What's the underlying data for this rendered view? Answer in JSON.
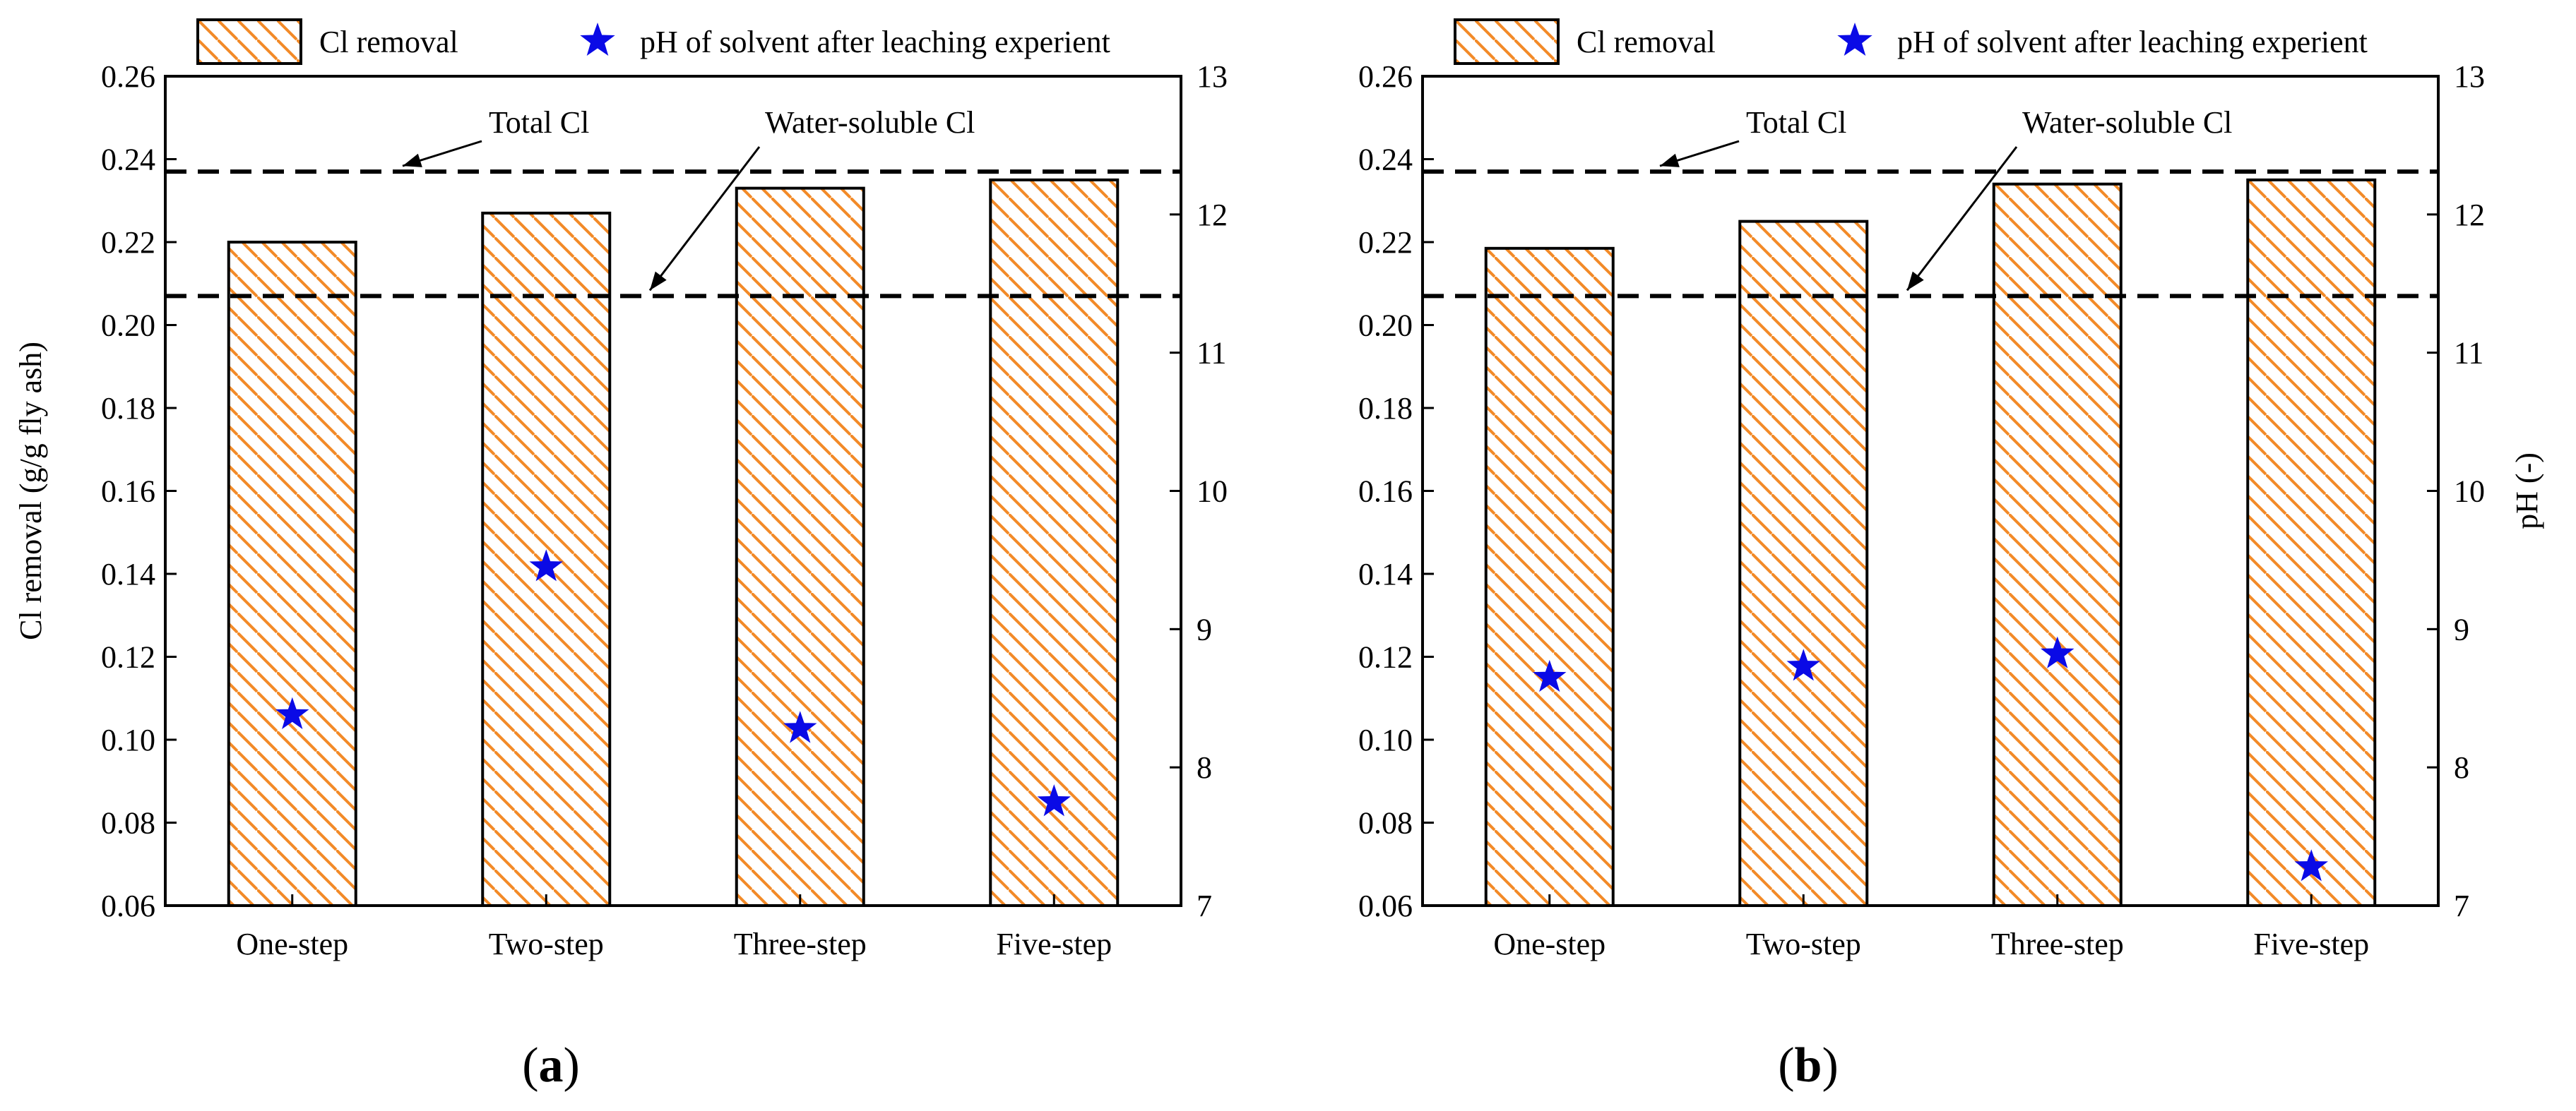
{
  "legend": {
    "bar_label": "Cl removal",
    "marker_label": "pH of solvent after leaching experient"
  },
  "colors": {
    "bar_hatch": "#F28A28",
    "bar_edge": "#000000",
    "marker": "#0A0AE6",
    "reference_line": "#000000"
  },
  "chart_data": [
    {
      "type": "bar",
      "panel_label": "a",
      "categories": [
        "One-step",
        "Two-step",
        "Three-step",
        "Five-step"
      ],
      "series": [
        {
          "name": "Cl removal",
          "axis": "left",
          "values": [
            0.22,
            0.227,
            0.233,
            0.235
          ]
        },
        {
          "name": "pH of solvent after leaching experient",
          "axis": "right",
          "kind": "scatter",
          "values": [
            8.38,
            9.45,
            8.28,
            7.75
          ]
        }
      ],
      "reference_lines": [
        {
          "label": "Total Cl",
          "value": 0.237
        },
        {
          "label": "Water-soluble Cl",
          "value": 0.207
        }
      ],
      "ylabel": "Cl removal (g/g fly ash)",
      "y2label": "",
      "ylim": [
        0.06,
        0.26
      ],
      "y2lim": [
        7,
        13
      ],
      "yticks": [
        "0.06",
        "0.08",
        "0.10",
        "0.12",
        "0.14",
        "0.16",
        "0.18",
        "0.20",
        "0.22",
        "0.24",
        "0.26"
      ],
      "y2ticks": [
        "7",
        "8",
        "9",
        "10",
        "11",
        "12",
        "13"
      ]
    },
    {
      "type": "bar",
      "panel_label": "b",
      "categories": [
        "One-step",
        "Two-step",
        "Three-step",
        "Five-step"
      ],
      "series": [
        {
          "name": "Cl removal",
          "axis": "left",
          "values": [
            0.2185,
            0.225,
            0.234,
            0.235
          ]
        },
        {
          "name": "pH of solvent after leaching experient",
          "axis": "right",
          "kind": "scatter",
          "values": [
            8.65,
            8.73,
            8.82,
            7.28
          ]
        }
      ],
      "reference_lines": [
        {
          "label": "Total Cl",
          "value": 0.237
        },
        {
          "label": "Water-soluble Cl",
          "value": 0.207
        }
      ],
      "ylabel": "",
      "y2label": "pH (-)",
      "ylim": [
        0.06,
        0.26
      ],
      "y2lim": [
        7,
        13
      ],
      "yticks": [
        "0.06",
        "0.08",
        "0.10",
        "0.12",
        "0.14",
        "0.16",
        "0.18",
        "0.20",
        "0.22",
        "0.24",
        "0.26"
      ],
      "y2ticks": [
        "7",
        "8",
        "9",
        "10",
        "11",
        "12",
        "13"
      ]
    }
  ]
}
